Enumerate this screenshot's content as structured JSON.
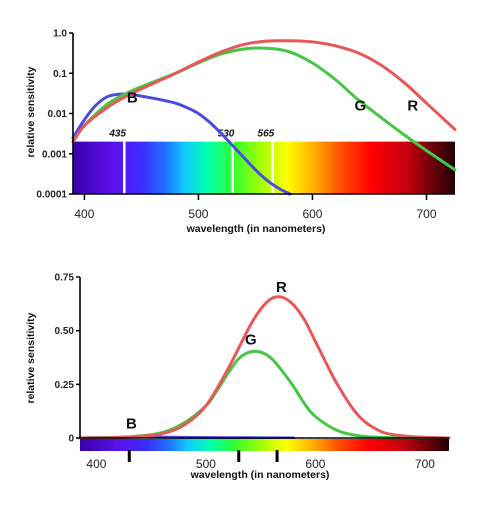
{
  "chart_data": [
    {
      "type": "line",
      "yscale": "log",
      "xlabel": "wavelength (in nanometers)",
      "ylabel": "relative sensitivity",
      "xlim": [
        390,
        725
      ],
      "ylim": [
        0.0001,
        1.0
      ],
      "xticks": [
        400,
        500,
        600,
        700
      ],
      "yticks": [
        {
          "value": 1.0,
          "label": "1.0"
        },
        {
          "value": 0.1,
          "label": "0.1"
        },
        {
          "value": 0.01,
          "label": "0.01"
        },
        {
          "value": 0.001,
          "label": "0.001"
        },
        {
          "value": 0.0001,
          "label": "0.0001"
        }
      ],
      "spectrum_band": {
        "from": 0.0001,
        "to": 0.002
      },
      "markers": [
        {
          "x": 435,
          "label": "435"
        },
        {
          "x": 530,
          "label": "530"
        },
        {
          "x": 565,
          "label": "565"
        }
      ],
      "series": [
        {
          "name": "B",
          "color": "#4c4cde",
          "label_at": {
            "x": 442,
            "y": 0.019
          },
          "x": [
            390,
            400,
            410,
            420,
            430,
            440,
            450,
            460,
            470,
            480,
            490,
            500,
            510,
            520,
            530,
            540,
            550,
            560,
            570,
            580
          ],
          "y": [
            0.0025,
            0.007,
            0.016,
            0.026,
            0.03,
            0.03,
            0.027,
            0.024,
            0.021,
            0.018,
            0.014,
            0.01,
            0.006,
            0.0032,
            0.0016,
            0.0008,
            0.0004,
            0.00022,
            0.00014,
            0.0001
          ]
        },
        {
          "name": "G",
          "color": "#44c844",
          "label_at": {
            "x": 642,
            "y": 0.012
          },
          "x": [
            390,
            400,
            420,
            440,
            460,
            480,
            500,
            520,
            540,
            560,
            580,
            600,
            620,
            640,
            660,
            680,
            700,
            725
          ],
          "y": [
            0.002,
            0.005,
            0.017,
            0.035,
            0.06,
            0.1,
            0.18,
            0.3,
            0.4,
            0.42,
            0.34,
            0.18,
            0.07,
            0.022,
            0.008,
            0.003,
            0.0012,
            0.0004
          ]
        },
        {
          "name": "R",
          "color": "#e85858",
          "label_at": {
            "x": 688,
            "y": 0.012
          },
          "x": [
            390,
            400,
            420,
            440,
            460,
            480,
            500,
            520,
            540,
            560,
            580,
            600,
            620,
            640,
            660,
            680,
            700,
            725
          ],
          "y": [
            0.002,
            0.005,
            0.014,
            0.03,
            0.055,
            0.1,
            0.19,
            0.34,
            0.52,
            0.63,
            0.64,
            0.6,
            0.48,
            0.32,
            0.16,
            0.06,
            0.018,
            0.004
          ]
        }
      ]
    },
    {
      "type": "line",
      "xlabel": "wavelength (in nanometers)",
      "ylabel": "relative sensitivity",
      "xlim": [
        385,
        722
      ],
      "ylim": [
        0,
        0.75
      ],
      "xticks": [
        400,
        500,
        600,
        700
      ],
      "yticks": [
        {
          "value": 0,
          "label": "0"
        },
        {
          "value": 0.25,
          "label": "0.25"
        },
        {
          "value": 0.5,
          "label": "0.50"
        },
        {
          "value": 0.75,
          "label": "0.75"
        }
      ],
      "markers": [
        {
          "x": 430
        },
        {
          "x": 530
        },
        {
          "x": 565
        }
      ],
      "series": [
        {
          "name": "B",
          "color": "#4c4cde",
          "label_at": {
            "x": 432,
            "y": 0.045
          },
          "x": [
            385,
            420,
            440,
            460,
            500,
            540,
            580
          ],
          "y": [
            0,
            0.003,
            0.005,
            0.004,
            0.002,
            0.001,
            0
          ]
        },
        {
          "name": "G",
          "color": "#44c844",
          "label_at": {
            "x": 541,
            "y": 0.435
          },
          "x": [
            385,
            420,
            440,
            460,
            480,
            500,
            510,
            520,
            530,
            540,
            550,
            560,
            570,
            580,
            590,
            600,
            620,
            640,
            660,
            700,
            722
          ],
          "y": [
            0,
            0.003,
            0.01,
            0.025,
            0.07,
            0.15,
            0.22,
            0.3,
            0.37,
            0.4,
            0.4,
            0.37,
            0.31,
            0.24,
            0.16,
            0.1,
            0.035,
            0.01,
            0.003,
            0,
            0
          ]
        },
        {
          "name": "R",
          "color": "#e85858",
          "label_at": {
            "x": 569,
            "y": 0.68
          },
          "x": [
            385,
            420,
            440,
            460,
            480,
            500,
            520,
            540,
            550,
            560,
            570,
            580,
            590,
            600,
            620,
            640,
            660,
            680,
            700,
            722
          ],
          "y": [
            0,
            0.002,
            0.008,
            0.02,
            0.06,
            0.15,
            0.32,
            0.52,
            0.6,
            0.65,
            0.655,
            0.62,
            0.55,
            0.45,
            0.25,
            0.1,
            0.03,
            0.01,
            0.003,
            0
          ]
        }
      ]
    }
  ]
}
